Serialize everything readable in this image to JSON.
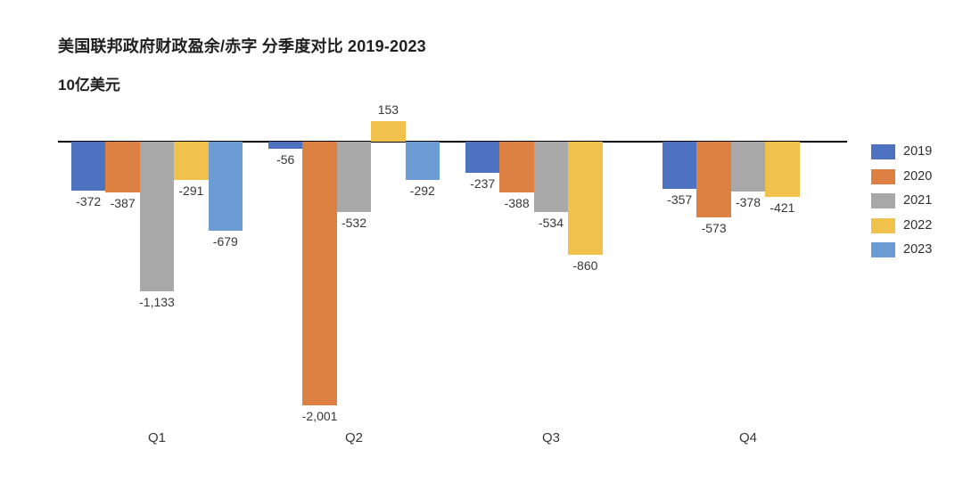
{
  "title": "美国联邦政府财政盈余/赤字 分季度对比 2019-2023",
  "subtitle": "10亿美元",
  "chart_data": {
    "type": "bar",
    "title": "美国联邦政府财政盈余/赤字 分季度对比 2019-2023",
    "unit_label": "10亿美元",
    "categories": [
      "Q1",
      "Q2",
      "Q3",
      "Q4"
    ],
    "series": [
      {
        "name": "2019",
        "color": "#4C72C0",
        "values": [
          -372,
          -56,
          -237,
          -357
        ]
      },
      {
        "name": "2020",
        "color": "#DD8142",
        "values": [
          -387,
          -2001,
          -388,
          -573
        ]
      },
      {
        "name": "2021",
        "color": "#A8A8A8",
        "values": [
          -1133,
          -532,
          -534,
          -378
        ]
      },
      {
        "name": "2022",
        "color": "#F1C24B",
        "values": [
          -291,
          153,
          -860,
          -421
        ]
      },
      {
        "name": "2023",
        "color": "#6D9CD4",
        "values": [
          -679,
          -292,
          null,
          null
        ]
      }
    ],
    "value_labels": [
      "-372",
      "-387",
      "-1,133",
      "-291",
      "-679",
      "-56",
      "-2,001",
      "-532",
      "153",
      "-292",
      "-237",
      "-388",
      "-534",
      "-860",
      "-357",
      "-573",
      "-378",
      "-421"
    ],
    "baseline": 0,
    "grid": false,
    "legend_position": "right",
    "xlabel": "",
    "ylabel": "10亿美元"
  }
}
